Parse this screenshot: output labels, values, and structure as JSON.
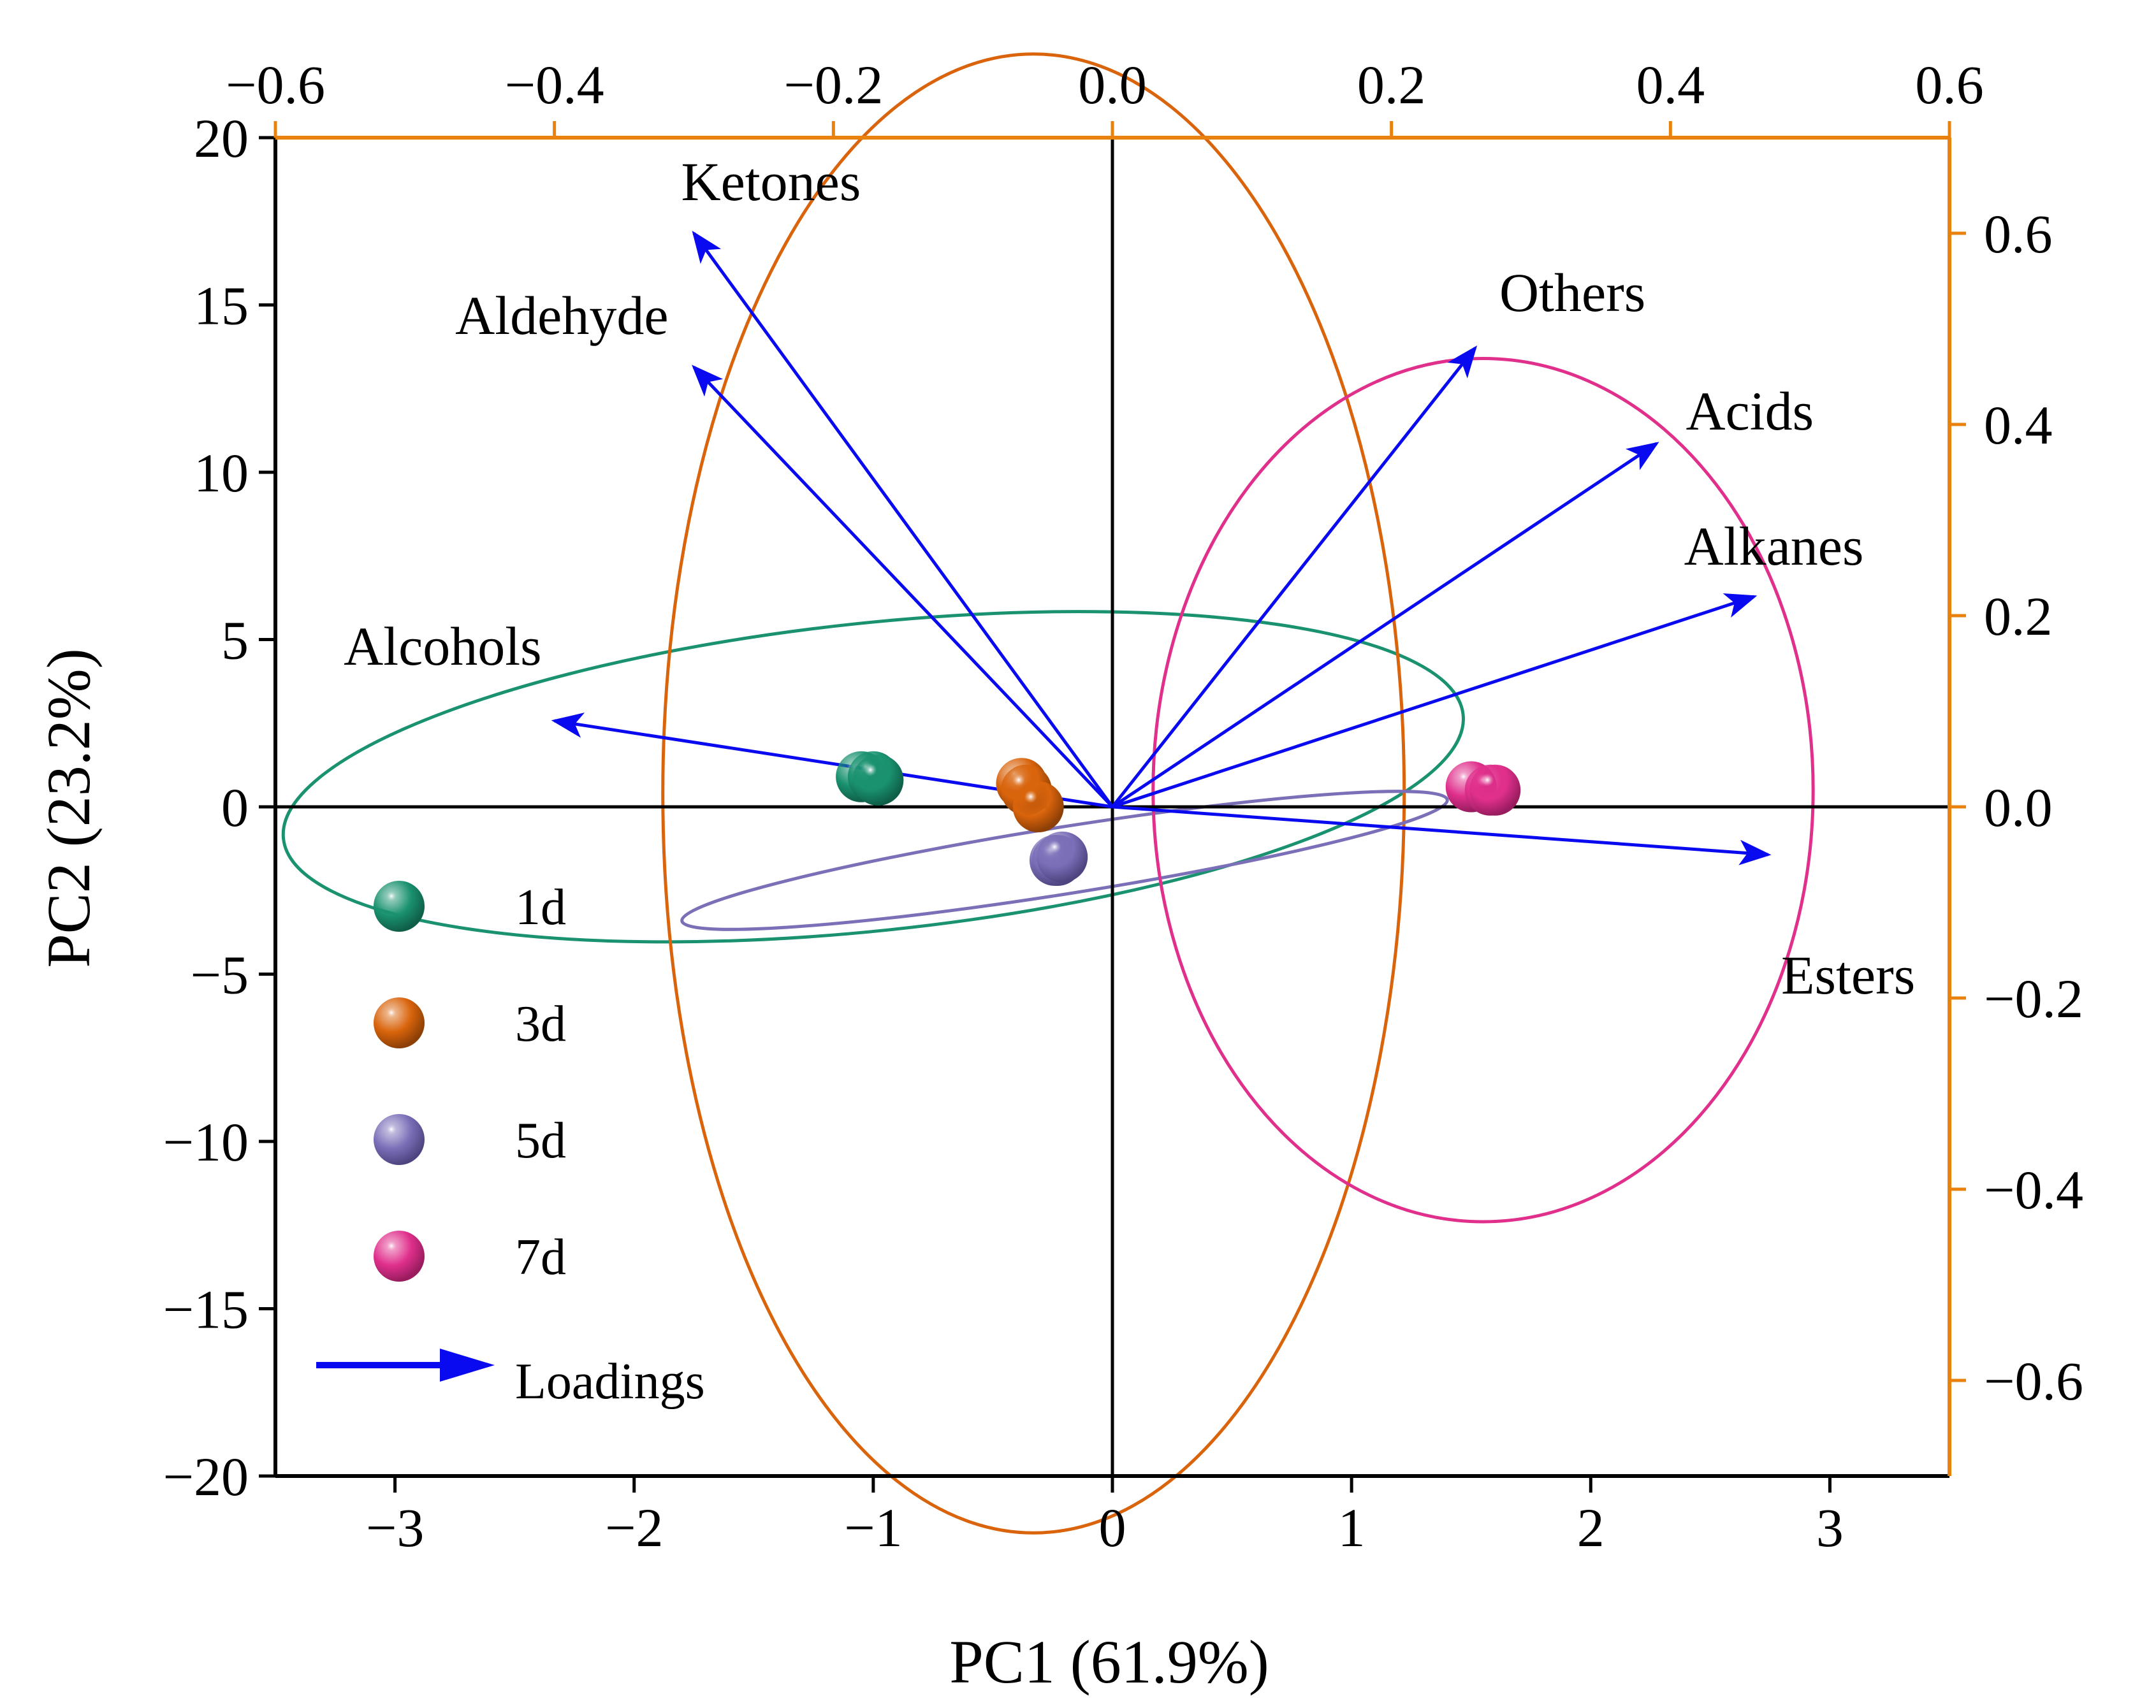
{
  "chart_data": {
    "type": "scatter",
    "subtype": "pca-biplot",
    "xlabel": "PC1 (61.9%)",
    "ylabel": "PC2 (23.2%)",
    "xlim": [
      -3.5,
      3.5
    ],
    "ylim": [
      -20,
      20
    ],
    "x_ticks": [
      "−3",
      "−2",
      "−1",
      "0",
      "1",
      "2",
      "3"
    ],
    "y_ticks": [
      "20",
      "15",
      "10",
      "5",
      "0",
      "−5",
      "−10",
      "−15",
      "−20"
    ],
    "top_axis": {
      "lim": [
        -0.6,
        0.6
      ],
      "ticks": [
        "−0.6",
        "−0.4",
        "−0.2",
        "0.0",
        "0.2",
        "0.4",
        "0.6"
      ],
      "color": "#E8820C"
    },
    "right_axis": {
      "lim": [
        -0.7,
        0.7
      ],
      "ticks": [
        "0.6",
        "0.4",
        "0.2",
        "0.0",
        "−0.2",
        "−0.4",
        "−0.6"
      ],
      "color": "#E8820C"
    },
    "groups": [
      {
        "name": "1d",
        "color": "#1A9270",
        "points": [
          [
            -1.05,
            0.9
          ],
          [
            -1.0,
            0.9
          ],
          [
            -0.98,
            0.8
          ]
        ],
        "ellipse": {
          "cx": -1.0,
          "cy": 0.9,
          "rx": 2.48,
          "ry": 4.6,
          "angle": 6
        }
      },
      {
        "name": "3d",
        "color": "#D9640C",
        "points": [
          [
            -0.38,
            0.7
          ],
          [
            -0.36,
            0.5
          ],
          [
            -0.31,
            0.0
          ]
        ],
        "ellipse": {
          "cx": -0.33,
          "cy": 0.4,
          "rx": 1.55,
          "ry": 22.1,
          "angle": 0
        }
      },
      {
        "name": "5d",
        "color": "#7B6FB8",
        "points": [
          [
            -0.24,
            -1.6
          ],
          [
            -0.23,
            -1.6
          ],
          [
            -0.21,
            -1.5
          ]
        ],
        "ellipse": {
          "cx": -0.2,
          "cy": -1.6,
          "rx": 1.62,
          "ry": 1.0,
          "angle": 9
        }
      },
      {
        "name": "7d",
        "color": "#E0308C",
        "points": [
          [
            1.5,
            0.6
          ],
          [
            1.58,
            0.5
          ],
          [
            1.6,
            0.5
          ]
        ],
        "ellipse": {
          "cx": 1.55,
          "cy": 0.5,
          "rx": 1.38,
          "ry": 12.9,
          "angle": 0
        }
      }
    ],
    "loadings": [
      {
        "name": "Ketones",
        "x": -0.3,
        "y": 0.6
      },
      {
        "name": "Aldehyde",
        "x": -0.3,
        "y": 0.46
      },
      {
        "name": "Others",
        "x": 0.26,
        "y": 0.48
      },
      {
        "name": "Acids",
        "x": 0.39,
        "y": 0.38
      },
      {
        "name": "Alkanes",
        "x": 0.46,
        "y": 0.22
      },
      {
        "name": "Alcohols",
        "x": -0.4,
        "y": 0.09
      },
      {
        "name": "Esters",
        "x": 0.47,
        "y": -0.05
      }
    ],
    "loading_color": "#0A0AF0",
    "legend": {
      "position": "bottom-left",
      "entries": [
        {
          "label": "1d",
          "color": "#1A9270",
          "marker": "sphere"
        },
        {
          "label": "3d",
          "color": "#D9640C",
          "marker": "sphere"
        },
        {
          "label": "5d",
          "color": "#7B6FB8",
          "marker": "sphere"
        },
        {
          "label": "7d",
          "color": "#E0308C",
          "marker": "sphere"
        },
        {
          "label": "Loadings",
          "color": "#0A0AF0",
          "marker": "arrow"
        }
      ]
    }
  }
}
